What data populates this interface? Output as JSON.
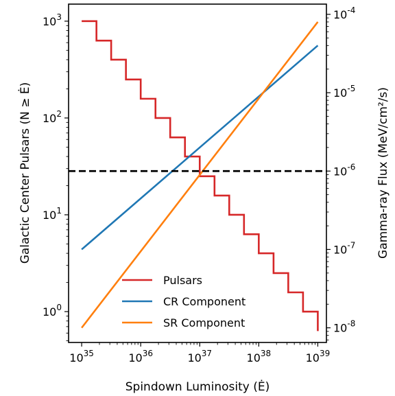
{
  "chart_data": {
    "type": "line",
    "title": "",
    "xlabel": "Spindown Luminosity (Ė)",
    "ylabel_left": "Galactic Center Pulsars (N ≥ Ė)",
    "ylabel_right": "Gamma-ray Flux (MeV/cm²/s)",
    "x_scale": "log",
    "y_left_scale": "log",
    "y_right_scale": "log",
    "xlim": [
      6e+34,
      1.4e+39
    ],
    "ylim_left": [
      0.48,
      1500
    ],
    "ylim_right": [
      6.5e-09,
      0.000135
    ],
    "x_ticks": [
      "10^35",
      "10^36",
      "10^37",
      "10^38",
      "10^39"
    ],
    "y_left_ticks": [
      "10^0",
      "10^1",
      "10^2",
      "10^3"
    ],
    "y_right_ticks": [
      "10^-8",
      "10^-7",
      "10^-6",
      "10^-5",
      "10^-4"
    ],
    "legend_position": "lower-center",
    "series": [
      {
        "name": "Pulsars",
        "color": "#d62728",
        "axis": "left",
        "style": "step",
        "x": [
          1e+35,
          1.78e+35,
          3.16e+35,
          5.62e+35,
          1e+36,
          1.78e+36,
          3.16e+36,
          5.62e+36,
          1e+37,
          1.78e+37,
          3.16e+37,
          5.62e+37,
          1e+38,
          1.78e+38,
          3.16e+38,
          5.62e+38,
          1e+39
        ],
        "y": [
          1000,
          630,
          400,
          250,
          158,
          100,
          63,
          40,
          25,
          15.8,
          10,
          6.3,
          4.0,
          2.5,
          1.58,
          1.0,
          0.63
        ]
      },
      {
        "name": "CR Component",
        "color": "#1f77b4",
        "axis": "right",
        "style": "line",
        "x": [
          1e+35,
          1e+39
        ],
        "y": [
          1e-07,
          4e-05
        ]
      },
      {
        "name": "SR Component",
        "color": "#ff7f0e",
        "axis": "right",
        "style": "line",
        "x": [
          1e+35,
          1e+39
        ],
        "y": [
          1e-08,
          8e-05
        ]
      }
    ],
    "hline": {
      "axis": "right",
      "y": 1e-06,
      "color": "#000000",
      "style": "dashed"
    }
  }
}
